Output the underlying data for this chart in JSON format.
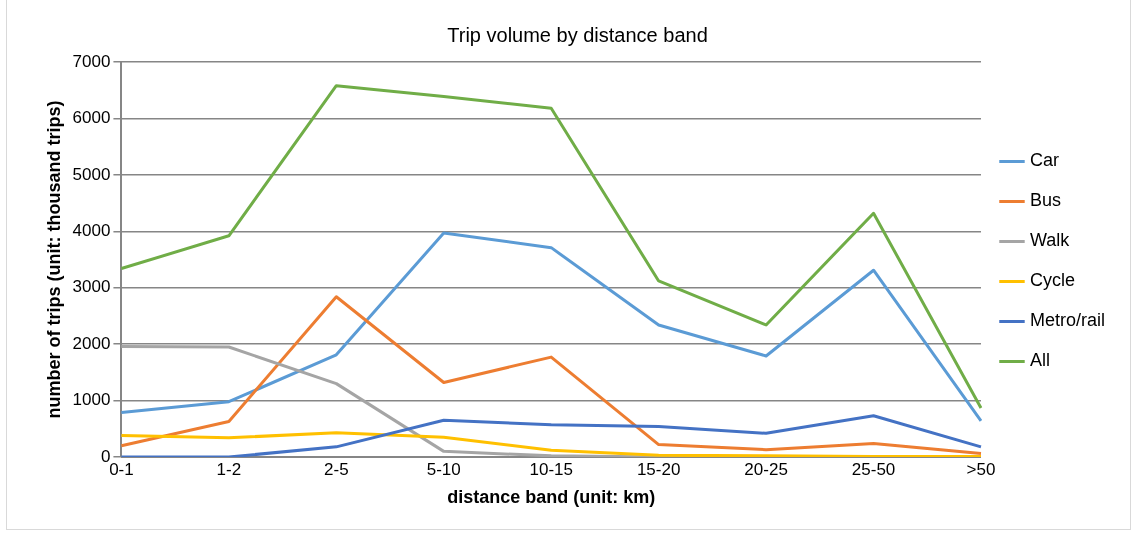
{
  "chart_data": {
    "type": "line",
    "title": "Trip volume by distance band",
    "xlabel": "distance band (unit: km)",
    "ylabel": "number of trips (unit: thousand trips)",
    "categories": [
      "0-1",
      "1-2",
      "2-5",
      "5-10",
      "10-15",
      "15-20",
      "20-25",
      "25-50",
      ">50"
    ],
    "series": [
      {
        "name": "Car",
        "color": "#5b9bd5",
        "values": [
          790,
          980,
          1810,
          3970,
          3710,
          2340,
          1790,
          3310,
          640
        ]
      },
      {
        "name": "Bus",
        "color": "#ed7d31",
        "values": [
          200,
          630,
          2840,
          1320,
          1770,
          220,
          130,
          240,
          60
        ]
      },
      {
        "name": "Walk",
        "color": "#a5a5a5",
        "values": [
          1960,
          1950,
          1300,
          100,
          20,
          0,
          0,
          0,
          0
        ]
      },
      {
        "name": "Cycle",
        "color": "#ffc000",
        "values": [
          380,
          340,
          430,
          350,
          120,
          30,
          20,
          10,
          10
        ]
      },
      {
        "name": "Metro/rail",
        "color": "#4472c4",
        "values": [
          0,
          0,
          180,
          650,
          570,
          540,
          420,
          730,
          180
        ]
      },
      {
        "name": "All",
        "color": "#70ad47",
        "values": [
          3340,
          3920,
          6580,
          6390,
          6180,
          3120,
          2340,
          4320,
          870
        ]
      }
    ],
    "ylim": [
      0,
      7000
    ],
    "yticks": [
      0,
      1000,
      2000,
      3000,
      4000,
      5000,
      6000,
      7000
    ],
    "grid": "y",
    "legend": "right",
    "marker": "none",
    "line_style": "solid"
  }
}
